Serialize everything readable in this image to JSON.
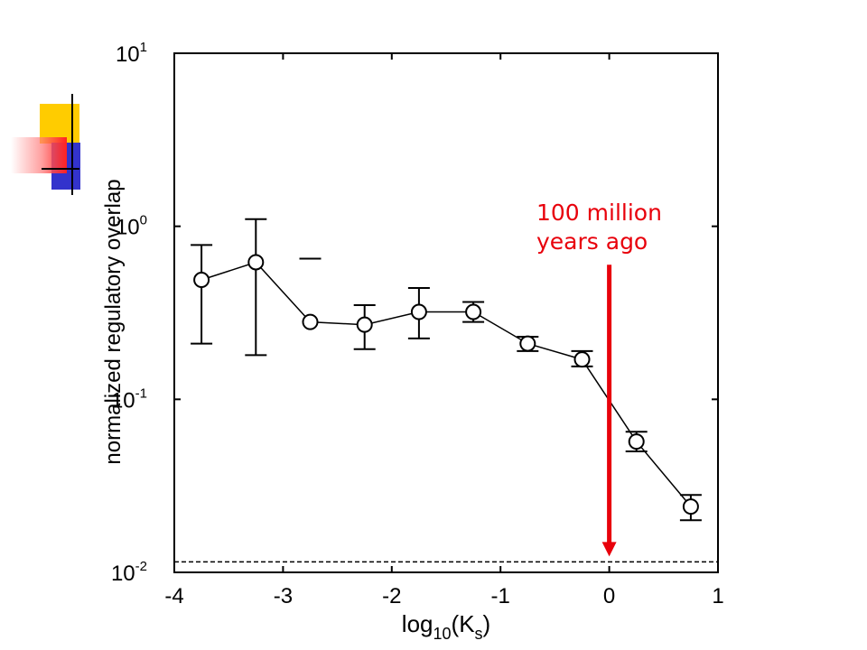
{
  "colors": {
    "axes": "#000000",
    "series": "#000000",
    "annotation": "#e8000b",
    "deco_yellow": "#ffcc00",
    "deco_blue": "#3333cc",
    "deco_red": "#ff2222"
  },
  "chart_data": {
    "type": "line",
    "title": "",
    "xlabel_base": "log",
    "xlabel_base_sub": "10",
    "xlabel_paren_open": "(K",
    "xlabel_var_sub": "s",
    "xlabel_paren_close": ")",
    "ylabel": "normalized regulatory overlap",
    "xlim": [
      -4,
      1
    ],
    "ylim": [
      0.01,
      10
    ],
    "yscale": "log",
    "grid": false,
    "x_ticks": [
      "-4",
      "-3",
      "-2",
      "-1",
      "0",
      "1"
    ],
    "x_tick_values": [
      -4,
      -3,
      -2,
      -1,
      0,
      1
    ],
    "y_ticks": [
      {
        "base": "10",
        "exp": "-2",
        "value": 0.01
      },
      {
        "base": "10",
        "exp": "-1",
        "value": 0.1
      },
      {
        "base": "10",
        "exp": "0",
        "value": 1
      },
      {
        "base": "10",
        "exp": "1",
        "value": 10
      }
    ],
    "series": [
      {
        "x": [
          -3.75,
          -3.25,
          -2.75,
          -2.25,
          -1.75,
          -1.25,
          -0.75,
          -0.25,
          0.25,
          0.75
        ],
        "y": [
          0.49,
          0.62,
          0.28,
          0.27,
          0.32,
          0.32,
          0.21,
          0.17,
          0.057,
          0.024
        ],
        "err_low": [
          0.21,
          0.18,
          null,
          0.195,
          0.225,
          0.28,
          0.19,
          0.155,
          0.05,
          0.02
        ],
        "err_high": [
          0.78,
          1.1,
          null,
          0.35,
          0.44,
          0.365,
          0.23,
          0.19,
          0.065,
          0.028
        ]
      }
    ],
    "stray_tick": {
      "x": -2.75,
      "y": 0.65
    },
    "baseline": {
      "y": 0.0115,
      "style": "dashed"
    },
    "annotation": {
      "line1": "100 million",
      "line2": "years ago",
      "arrow_x": 0,
      "arrow_from_y": 0.6,
      "arrow_to_y": 0.0115
    }
  }
}
